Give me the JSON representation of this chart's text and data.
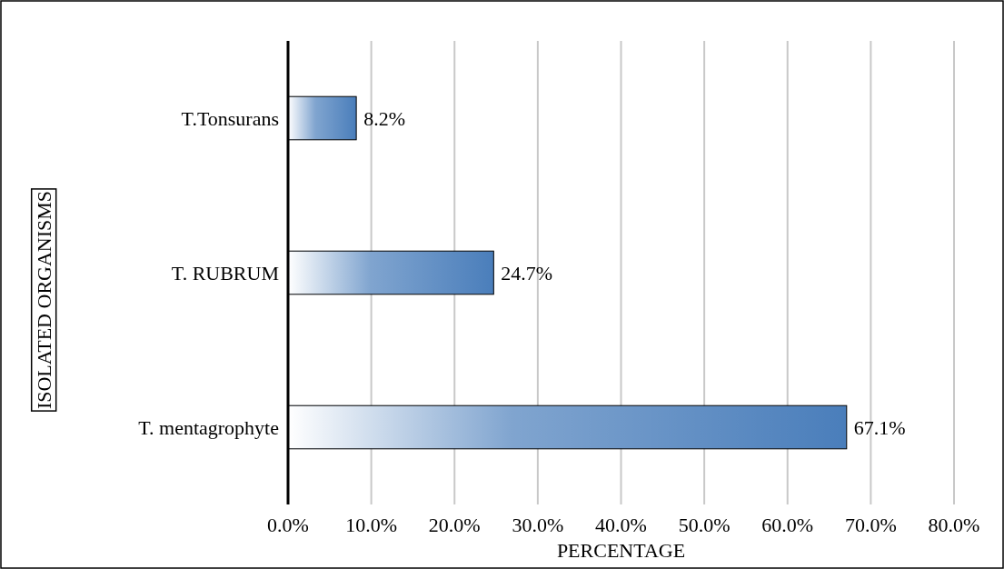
{
  "chart_data": {
    "type": "bar",
    "orientation": "horizontal",
    "categories": [
      "T.Tonsurans",
      "T. RUBRUM",
      "T. mentagrophyte"
    ],
    "values": [
      8.2,
      24.7,
      67.1
    ],
    "value_labels": [
      "8.2%",
      "24.7%",
      "67.1%"
    ],
    "color": "#4a7ebb",
    "xlim": [
      0,
      80
    ],
    "xticks": [
      {
        "value": 0,
        "label": "0.0%"
      },
      {
        "value": 10,
        "label": "10.0%"
      },
      {
        "value": 20,
        "label": "20.0%"
      },
      {
        "value": 30,
        "label": "30.0%"
      },
      {
        "value": 40,
        "label": "40.0%"
      },
      {
        "value": 50,
        "label": "50.0%"
      },
      {
        "value": 60,
        "label": "60.0%"
      },
      {
        "value": 70,
        "label": "70.0%"
      },
      {
        "value": 80,
        "label": "80.0%"
      }
    ],
    "xlabel": "PERCENTAGE",
    "ylabel": "ISOLATED ORGANISMS",
    "grid": "x"
  }
}
